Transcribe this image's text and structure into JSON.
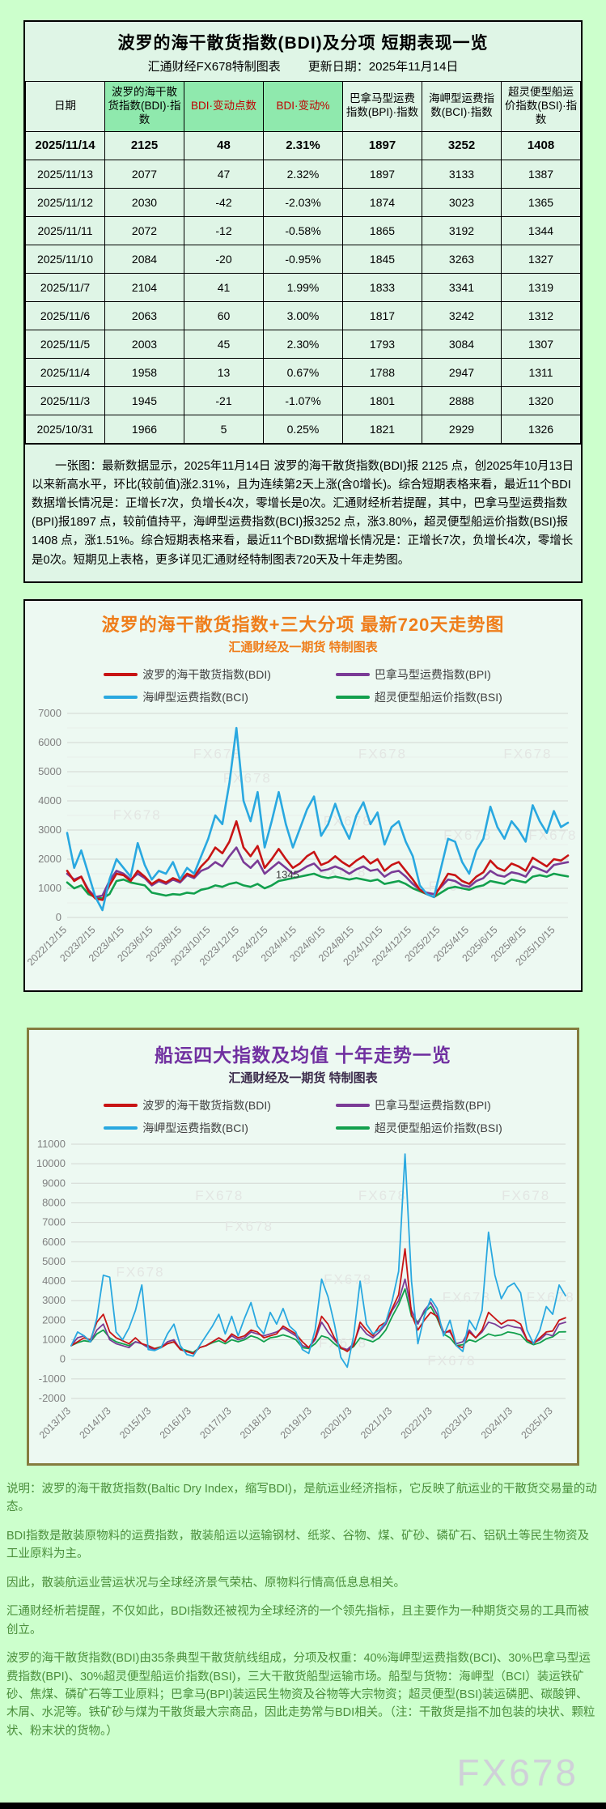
{
  "page": {
    "watermark": "FX678",
    "bg": "#ccffcc"
  },
  "table_section": {
    "title": "波罗的海干散货指数(BDI)及分项  短期表现一览",
    "subtitle_left": "汇通财经FX678特制图表",
    "subtitle_right": "更新日期：2025年11月14日",
    "columns": [
      "日期",
      "波罗的海干散货指数(BDI)·指数",
      "BDI·变动点数",
      "BDI·变动%",
      "巴拿马型运费指数(BPI)·指数",
      "海岬型运费指数(BCI)·指数",
      "超灵便型船运价指数(BSI)·指数"
    ],
    "highlight_columns": [
      1,
      2,
      3
    ],
    "red_columns": [
      2,
      3
    ],
    "rows": [
      [
        "2025/11/14",
        "2125",
        "48",
        "2.31%",
        "1897",
        "3252",
        "1408"
      ],
      [
        "2025/11/13",
        "2077",
        "47",
        "2.32%",
        "1897",
        "3133",
        "1387"
      ],
      [
        "2025/11/12",
        "2030",
        "-42",
        "-2.03%",
        "1874",
        "3023",
        "1365"
      ],
      [
        "2025/11/11",
        "2072",
        "-12",
        "-0.58%",
        "1865",
        "3192",
        "1344"
      ],
      [
        "2025/11/10",
        "2084",
        "-20",
        "-0.95%",
        "1845",
        "3263",
        "1327"
      ],
      [
        "2025/11/7",
        "2104",
        "41",
        "1.99%",
        "1833",
        "3341",
        "1319"
      ],
      [
        "2025/11/6",
        "2063",
        "60",
        "3.00%",
        "1817",
        "3242",
        "1312"
      ],
      [
        "2025/11/5",
        "2003",
        "45",
        "2.30%",
        "1793",
        "3084",
        "1307"
      ],
      [
        "2025/11/4",
        "1958",
        "13",
        "0.67%",
        "1788",
        "2947",
        "1311"
      ],
      [
        "2025/11/3",
        "1945",
        "-21",
        "-1.07%",
        "1801",
        "2888",
        "1320"
      ],
      [
        "2025/10/31",
        "1966",
        "5",
        "0.25%",
        "1821",
        "2929",
        "1326"
      ]
    ],
    "note": "一张图：最新数据显示，2025年11月14日 波罗的海干散货指数(BDI)报 2125 点，创2025年10月13日以来新高水平，环比(较前值)涨2.31%，且为连续第2天上涨(含0增长)。综合短期表格来看，最近11个BDI数据增长情况是：正增长7次，负增长4次，零增长是0次。汇通财经析若提醒，其中，巴拿马型运费指数(BPI)报1897 点，较前值持平，海岬型运费指数(BCI)报3252 点，涨3.80%，超灵便型船运价指数(BSI)报1408 点，涨1.51%。综合短期表格来看，最近11个BDI数据增长情况是：正增长7次，负增长4次，零增长是0次。短期见上表格，更多详见汇通财经特制图表720天及十年走势图。"
  },
  "chart_data": [
    {
      "type": "line",
      "title": "波罗的海干散货指数+三大分项  最新720天走势图",
      "subtitle": "汇通财经及一期货 特制图表",
      "ylim": [
        0,
        7000
      ],
      "ytick_step": 1000,
      "minor_step": 500,
      "grid": true,
      "legend_position": "top-center",
      "annotation": {
        "text": "1345",
        "x_frac": 0.44,
        "y_value": 1345
      },
      "x_tick_labels": [
        "2022/12/15",
        "2023/2/15",
        "2023/4/15",
        "2023/6/15",
        "2023/8/15",
        "2023/10/15",
        "2023/12/15",
        "2024/2/15",
        "2024/4/15",
        "2024/6/15",
        "2024/8/15",
        "2024/10/15",
        "2024/12/15",
        "2025/2/15",
        "2025/4/15",
        "2025/6/15",
        "2025/8/15",
        "2025/10/15"
      ],
      "series": [
        {
          "name": "波罗的海干散货指数(BDI)",
          "color": "#c81414",
          "values": [
            1600,
            1250,
            1400,
            900,
            650,
            600,
            1100,
            1500,
            1450,
            1250,
            1600,
            1400,
            1150,
            1300,
            1200,
            1350,
            1250,
            1500,
            1400,
            1750,
            2000,
            2400,
            2200,
            2600,
            3300,
            2400,
            2100,
            2450,
            1700,
            2000,
            2350,
            2000,
            1700,
            1850,
            2100,
            2250,
            1800,
            1900,
            2100,
            1900,
            1750,
            1950,
            2100,
            1850,
            2000,
            1600,
            1800,
            1900,
            1600,
            1300,
            950,
            800,
            700,
            1100,
            1500,
            1450,
            1250,
            1150,
            1400,
            1550,
            1950,
            1700,
            1600,
            1850,
            1750,
            1600,
            2050,
            1900,
            1750,
            2000,
            1950,
            2125
          ]
        },
        {
          "name": "巴拿马型运费指数(BPI)",
          "color": "#7a3b96",
          "values": [
            1500,
            1300,
            1400,
            950,
            700,
            750,
            1250,
            1600,
            1500,
            1300,
            1500,
            1350,
            1100,
            1250,
            1150,
            1300,
            1200,
            1450,
            1350,
            1600,
            1700,
            1900,
            1750,
            2100,
            2400,
            1900,
            1700,
            1950,
            1500,
            1700,
            1900,
            1700,
            1500,
            1600,
            1750,
            1850,
            1600,
            1650,
            1750,
            1650,
            1500,
            1650,
            1750,
            1600,
            1650,
            1400,
            1550,
            1600,
            1400,
            1150,
            950,
            850,
            800,
            1050,
            1300,
            1250,
            1100,
            1050,
            1250,
            1350,
            1600,
            1450,
            1400,
            1550,
            1500,
            1400,
            1750,
            1650,
            1550,
            1800,
            1850,
            1897
          ]
        },
        {
          "name": "海岬型运费指数(BCI)",
          "color": "#29a8e0",
          "values": [
            2900,
            1700,
            2300,
            1500,
            700,
            250,
            1300,
            2000,
            1700,
            1400,
            2550,
            1800,
            1300,
            1600,
            1500,
            1900,
            1300,
            1700,
            1500,
            2100,
            2700,
            3500,
            3200,
            4600,
            6500,
            4000,
            3300,
            4300,
            2400,
            3300,
            4300,
            3200,
            2400,
            3050,
            3700,
            4150,
            2800,
            3200,
            3900,
            3200,
            2700,
            3500,
            3950,
            3200,
            3600,
            2500,
            3100,
            3300,
            2600,
            2100,
            1100,
            800,
            700,
            1700,
            2700,
            2600,
            1900,
            1500,
            2300,
            2700,
            3800,
            3100,
            2700,
            3300,
            3000,
            2600,
            3850,
            3300,
            2900,
            3650,
            3100,
            3250
          ]
        },
        {
          "name": "超灵便型船运价指数(BSI)",
          "color": "#12a04d",
          "values": [
            1200,
            1000,
            1100,
            800,
            700,
            650,
            800,
            1250,
            1300,
            1200,
            1150,
            1100,
            850,
            800,
            750,
            800,
            780,
            850,
            820,
            950,
            1000,
            1100,
            1050,
            1150,
            1200,
            1100,
            1050,
            1150,
            1000,
            1100,
            1250,
            1300,
            1350,
            1400,
            1450,
            1500,
            1400,
            1350,
            1400,
            1350,
            1300,
            1350,
            1300,
            1250,
            1300,
            1150,
            1200,
            1250,
            1150,
            1000,
            900,
            800,
            700,
            850,
            1000,
            1050,
            1000,
            950,
            1050,
            1100,
            1250,
            1200,
            1150,
            1300,
            1250,
            1200,
            1400,
            1450,
            1400,
            1500,
            1450,
            1408
          ]
        }
      ]
    },
    {
      "type": "line",
      "title": "船运四大指数及均值 十年走势一览",
      "subtitle": "汇通财经及一期货 特制图表",
      "ylim": [
        -2000,
        11000
      ],
      "ytick_step": 1000,
      "minor_step": 0,
      "grid": true,
      "legend_position": "top-center",
      "x_tick_labels": [
        "2013/1/3",
        "2014/1/3",
        "2015/1/3",
        "2016/1/3",
        "2017/1/3",
        "2018/1/3",
        "2019/1/3",
        "2020/1/3",
        "2021/1/3",
        "2022/1/3",
        "2023/1/3",
        "2024/1/3",
        "2025/1/3"
      ],
      "series": [
        {
          "name": "波罗的海干散货指数(BDI)",
          "color": "#c81414",
          "values": [
            700,
            900,
            1100,
            1000,
            1900,
            2300,
            1400,
            1100,
            950,
            800,
            1100,
            800,
            700,
            550,
            600,
            800,
            900,
            500,
            400,
            290,
            600,
            700,
            900,
            1100,
            900,
            1300,
            1100,
            1200,
            1500,
            1400,
            1100,
            1200,
            1300,
            1700,
            1500,
            1300,
            900,
            600,
            1100,
            2200,
            1800,
            1100,
            600,
            400,
            700,
            1900,
            1500,
            1200,
            1700,
            1900,
            2600,
            3300,
            5650,
            2300,
            1500,
            2000,
            2400,
            2200,
            1300,
            1500,
            700,
            600,
            1400,
            1100,
            1500,
            2400,
            2100,
            1800,
            2000,
            2000,
            1800,
            1000,
            800,
            1100,
            1400,
            1450,
            2000,
            2125
          ]
        },
        {
          "name": "巴拿马型运费指数(BPI)",
          "color": "#7a3b96",
          "values": [
            700,
            1100,
            1200,
            900,
            1500,
            1800,
            1000,
            800,
            700,
            600,
            900,
            800,
            600,
            500,
            600,
            900,
            1000,
            500,
            400,
            300,
            600,
            700,
            900,
            1100,
            900,
            1200,
            1000,
            1100,
            1400,
            1300,
            1200,
            1300,
            1400,
            1600,
            1400,
            1200,
            700,
            600,
            1000,
            1900,
            1400,
            1000,
            600,
            500,
            800,
            1700,
            1300,
            1100,
            1400,
            1800,
            2500,
            3000,
            4100,
            2500,
            1800,
            2500,
            2900,
            2300,
            1400,
            1400,
            800,
            900,
            1500,
            1100,
            1400,
            1900,
            1800,
            1600,
            1750,
            1650,
            1600,
            1000,
            850,
            1000,
            1300,
            1200,
            1800,
            1897
          ]
        },
        {
          "name": "海岬型运费指数(BCI)",
          "color": "#29a8e0",
          "values": [
            700,
            1400,
            1200,
            900,
            2100,
            4300,
            4200,
            1400,
            1000,
            1600,
            2500,
            3800,
            500,
            450,
            600,
            1300,
            1800,
            700,
            250,
            160,
            700,
            1200,
            1700,
            2300,
            1300,
            2200,
            1200,
            2100,
            2900,
            1700,
            1300,
            2400,
            1800,
            2600,
            1700,
            1400,
            500,
            300,
            1500,
            4100,
            3200,
            1800,
            100,
            -400,
            1200,
            4000,
            1800,
            1300,
            1500,
            1900,
            3000,
            4500,
            10500,
            4000,
            800,
            2200,
            3100,
            2600,
            1200,
            2000,
            700,
            400,
            2000,
            1500,
            2500,
            6500,
            4300,
            3100,
            3700,
            3900,
            3400,
            1500,
            800,
            1500,
            2700,
            2300,
            3800,
            3250
          ]
        },
        {
          "name": "超灵便型船运价指数(BSI)",
          "color": "#12a04d",
          "values": [
            700,
            850,
            950,
            900,
            1300,
            1500,
            1100,
            900,
            800,
            700,
            900,
            800,
            600,
            550,
            650,
            800,
            900,
            550,
            450,
            350,
            600,
            700,
            850,
            950,
            800,
            1000,
            900,
            1000,
            1200,
            1100,
            900,
            1100,
            1150,
            1250,
            1150,
            1000,
            600,
            550,
            800,
            1200,
            1100,
            800,
            550,
            450,
            650,
            1100,
            1000,
            900,
            1100,
            1500,
            2200,
            2800,
            3600,
            2200,
            1900,
            2400,
            2700,
            2100,
            1300,
            1100,
            700,
            750,
            1000,
            900,
            1100,
            1300,
            1200,
            1250,
            1400,
            1350,
            1250,
            900,
            750,
            850,
            1050,
            1150,
            1400,
            1408
          ]
        }
      ]
    }
  ],
  "footer": {
    "lines": [
      "说明：波罗的海干散货指数(Baltic Dry Index，缩写BDI)，是航运业经济指标，它反映了航运业的干散货交易量的动态。",
      "BDI指数是散装原物料的运费指数，散装船运以运输钢材、纸浆、谷物、煤、矿砂、磷矿石、铝矾土等民生物资及工业原料为主。",
      "因此，散装航运业营运状况与全球经济景气荣枯、原物料行情高低息息相关。",
      "汇通财经析若提醒，不仅如此，BDI指数还被视为全球经济的一个领先指标，且主要作为一种期货交易的工具而被创立。",
      "波罗的海干散货指数(BDI)由35条典型干散货航线组成，分项及权重：40%海岬型运费指数(BCI)、30%巴拿马型运费指数(BPI)、30%超灵便型船运价指数(BSI)，三大干散货船型运输市场。船型与货物：海岬型（BCI）装运铁矿砂、焦煤、磷矿石等工业原料；巴拿马(BPI)装运民生物资及谷物等大宗物资；超灵便型(BSI)装运磷肥、碳酸钾、木屑、水泥等。铁矿砂与煤为干散货最大宗商品，因此走势常与BDI相关。（注：干散货是指不加包装的块状、颗粒状、粉末状的货物。）"
    ]
  }
}
